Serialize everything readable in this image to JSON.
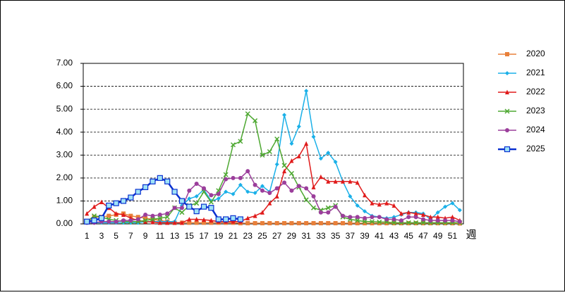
{
  "chart_data": {
    "type": "line",
    "categories": [
      1,
      null,
      3,
      null,
      5,
      null,
      7,
      null,
      9,
      null,
      11,
      null,
      13,
      null,
      15,
      null,
      17,
      null,
      19,
      null,
      21,
      null,
      23,
      null,
      25,
      null,
      27,
      null,
      29,
      null,
      31,
      null,
      33,
      null,
      35,
      null,
      37,
      null,
      39,
      null,
      41,
      null,
      43,
      null,
      45,
      null,
      47,
      null,
      49,
      null,
      51,
      null
    ],
    "x_label": "週",
    "ylim": [
      0,
      7
    ],
    "yticks": [
      {
        "value": 0,
        "label": "0.00"
      },
      {
        "value": 1,
        "label": "1.00"
      },
      {
        "value": 2,
        "label": "2.00"
      },
      {
        "value": 3,
        "label": "3.00"
      },
      {
        "value": 4,
        "label": "4.00"
      },
      {
        "value": 5,
        "label": "5.00"
      },
      {
        "value": 6,
        "label": "6.00"
      },
      {
        "value": 7,
        "label": "7.00"
      }
    ],
    "grid": true,
    "legend": "right",
    "series": [
      {
        "name": "2020",
        "color": "#e8803a",
        "marker": "square",
        "line_width": 1.5,
        "values": [
          0.1,
          0.3,
          0.3,
          0.35,
          0.4,
          0.45,
          0.35,
          0.3,
          0.25,
          0.2,
          0.15,
          0.1,
          0.05,
          0.05,
          0.05,
          0.05,
          0.05,
          0.05,
          0.05,
          0.05,
          0.05,
          0.03,
          0.03,
          0.03,
          0.03,
          0.03,
          0.03,
          0.03,
          0.03,
          0.03,
          0.03,
          0.03,
          0.03,
          0.03,
          0.03,
          0.03,
          0.03,
          0.03,
          0.03,
          0.03,
          0.03,
          0.03,
          0.03,
          0.03,
          0.03,
          0.03,
          0.03,
          0.03,
          0.03,
          0.03,
          0.03,
          0.02
        ]
      },
      {
        "name": "2021",
        "color": "#1ab0e8",
        "marker": "diamond",
        "line_width": 1.5,
        "values": [
          0.05,
          0.05,
          0.05,
          0.05,
          0.05,
          0.05,
          0.05,
          0.05,
          0.1,
          0.1,
          0.1,
          0.1,
          0.1,
          0.8,
          1.1,
          1.2,
          1.5,
          1.0,
          1.1,
          1.4,
          1.3,
          1.7,
          1.4,
          1.35,
          1.65,
          1.4,
          2.6,
          4.75,
          3.5,
          4.25,
          5.8,
          3.8,
          2.85,
          3.1,
          2.7,
          1.85,
          1.2,
          0.8,
          0.55,
          0.35,
          0.3,
          0.25,
          0.3,
          0.4,
          0.5,
          0.5,
          0.45,
          0.2,
          0.5,
          0.75,
          0.9,
          0.6
        ]
      },
      {
        "name": "2022",
        "color": "#e01b1b",
        "marker": "triangle",
        "line_width": 1.5,
        "values": [
          0.45,
          0.75,
          0.95,
          0.7,
          0.45,
          0.4,
          0.25,
          0.15,
          0.1,
          0.08,
          0.05,
          0.05,
          0.05,
          0.05,
          0.2,
          0.2,
          0.18,
          0.15,
          0.1,
          0.1,
          0.1,
          0.1,
          0.25,
          0.35,
          0.5,
          0.9,
          1.2,
          2.3,
          2.75,
          2.95,
          3.5,
          1.6,
          2.05,
          1.85,
          1.85,
          1.85,
          1.85,
          1.8,
          1.25,
          0.9,
          0.85,
          0.9,
          0.8,
          0.45,
          0.5,
          0.45,
          0.4,
          0.3,
          0.3,
          0.25,
          0.3,
          0.15
        ]
      },
      {
        "name": "2023",
        "color": "#4ea832",
        "marker": "cross",
        "line_width": 1.5,
        "values": [
          0.1,
          0.35,
          0.3,
          0.2,
          0.15,
          0.1,
          0.1,
          0.1,
          0.15,
          0.2,
          0.25,
          0.3,
          0.7,
          0.5,
          0.8,
          0.9,
          1.4,
          0.95,
          1.45,
          2.15,
          3.45,
          3.6,
          4.8,
          4.5,
          3.0,
          3.15,
          3.7,
          2.55,
          2.2,
          1.6,
          1.05,
          0.7,
          0.6,
          0.7,
          0.8,
          0.3,
          0.2,
          0.15,
          0.1,
          0.1,
          0.08,
          0.08,
          0.05,
          0.05,
          0.05,
          0.05,
          0.05,
          0.05,
          0.05,
          0.05,
          0.05,
          0.05
        ]
      },
      {
        "name": "2024",
        "color": "#9b3e9b",
        "marker": "circle",
        "line_width": 1.5,
        "values": [
          0.05,
          0.05,
          0.1,
          0.1,
          0.1,
          0.15,
          0.15,
          0.2,
          0.4,
          0.35,
          0.4,
          0.45,
          0.7,
          0.7,
          1.45,
          1.75,
          1.55,
          1.25,
          1.3,
          1.95,
          2.0,
          2.0,
          2.3,
          1.7,
          1.45,
          1.35,
          1.55,
          1.8,
          1.45,
          1.65,
          1.55,
          1.2,
          0.5,
          0.5,
          0.75,
          0.35,
          0.3,
          0.3,
          0.25,
          0.3,
          0.3,
          0.2,
          0.2,
          0.15,
          0.3,
          0.3,
          0.2,
          0.15,
          0.15,
          0.15,
          0.15,
          0.1
        ]
      },
      {
        "name": "2025",
        "color": "#0a30d0",
        "marker": "open-square",
        "line_width": 2.5,
        "values": [
          0.1,
          0.15,
          0.25,
          0.8,
          0.9,
          1.0,
          1.15,
          1.4,
          1.6,
          1.85,
          2.0,
          1.85,
          1.4,
          1.0,
          0.75,
          0.55,
          0.75,
          0.7,
          0.2,
          0.2,
          0.25,
          0.2,
          null,
          null,
          null,
          null,
          null,
          null,
          null,
          null,
          null,
          null,
          null,
          null,
          null,
          null,
          null,
          null,
          null,
          null,
          null,
          null,
          null,
          null,
          null,
          null,
          null,
          null,
          null,
          null,
          null,
          null
        ]
      }
    ]
  }
}
